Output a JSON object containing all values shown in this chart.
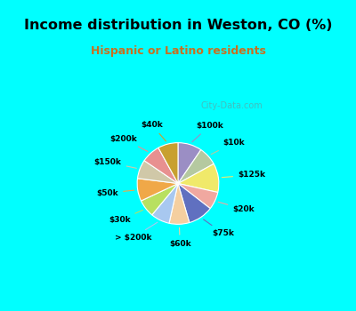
{
  "title": "Income distribution in Weston, CO (%)",
  "subtitle": "Hispanic or Latino residents",
  "background_color": "#00ffff",
  "chart_bg": "#e8f5e8",
  "segments": [
    {
      "label": "$100k",
      "value": 9.5,
      "color": "#9b8ec4"
    },
    {
      "label": "$10k",
      "value": 7.5,
      "color": "#b5c9a0"
    },
    {
      "label": "$125k",
      "value": 11.5,
      "color": "#f0e96a"
    },
    {
      "label": "$20k",
      "value": 7.0,
      "color": "#f0a8a0"
    },
    {
      "label": "$75k",
      "value": 10.0,
      "color": "#6070c0"
    },
    {
      "label": "$60k",
      "value": 8.0,
      "color": "#f5cfa0"
    },
    {
      "label": "> $200k",
      "value": 7.5,
      "color": "#a8c8f0"
    },
    {
      "label": "$30k",
      "value": 7.0,
      "color": "#b8e060"
    },
    {
      "label": "$50k",
      "value": 9.0,
      "color": "#f0a848"
    },
    {
      "label": "$150k",
      "value": 7.5,
      "color": "#d0c8a8"
    },
    {
      "label": "$200k",
      "value": 7.5,
      "color": "#e89090"
    },
    {
      "label": "$40k",
      "value": 8.0,
      "color": "#c8a030"
    }
  ],
  "watermark": "City-Data.com"
}
